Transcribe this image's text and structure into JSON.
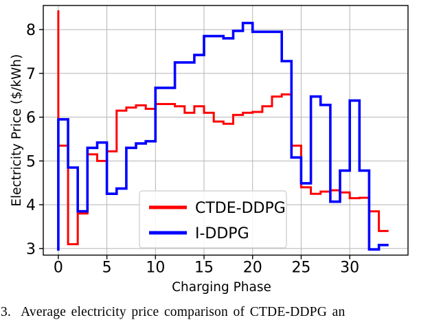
{
  "figure": {
    "caption_text": "3.  Average electricity price comparison of CTDE-DDPG an"
  },
  "chart_data": {
    "type": "line",
    "subtype": "step",
    "title": "",
    "xlabel": "Charging Phase",
    "ylabel": "Electricity Price ($/kWh)",
    "xlim": [
      -1.55,
      36.0
    ],
    "ylim": [
      2.85,
      8.55
    ],
    "xticks": [
      0,
      5,
      10,
      15,
      20,
      25,
      30
    ],
    "yticks": [
      3,
      4,
      5,
      6,
      7,
      8
    ],
    "grid": true,
    "grid_color": "#b4b4b4",
    "spine_color": "#000000",
    "legend_position": "lower center",
    "x_step": 1,
    "series": [
      {
        "name": "CTDE-DDPG",
        "color": "#ff0000",
        "line_width": 3,
        "start_value": 8.44,
        "x_end": 34.3,
        "values": [
          5.35,
          3.1,
          3.8,
          5.15,
          5.0,
          5.22,
          6.15,
          6.22,
          6.27,
          6.19,
          6.3,
          6.3,
          6.25,
          6.1,
          6.25,
          6.1,
          5.9,
          5.85,
          6.05,
          6.1,
          6.12,
          6.25,
          6.47,
          6.52,
          5.35,
          4.4,
          4.25,
          4.3,
          4.33,
          4.28,
          4.15,
          4.16,
          3.85,
          3.4
        ]
      },
      {
        "name": "I-DDPG",
        "color": "#0000ff",
        "line_width": 3.6,
        "start_value": 2.95,
        "x_end": 34.3,
        "values": [
          5.95,
          4.85,
          3.85,
          5.3,
          5.42,
          4.25,
          4.37,
          5.3,
          5.4,
          5.45,
          6.67,
          6.67,
          7.25,
          7.25,
          7.42,
          7.85,
          7.85,
          7.8,
          7.97,
          8.15,
          7.95,
          7.95,
          7.95,
          7.28,
          5.08,
          4.49,
          6.47,
          6.28,
          4.07,
          4.78,
          6.38,
          4.78,
          2.98,
          3.08
        ]
      }
    ]
  }
}
